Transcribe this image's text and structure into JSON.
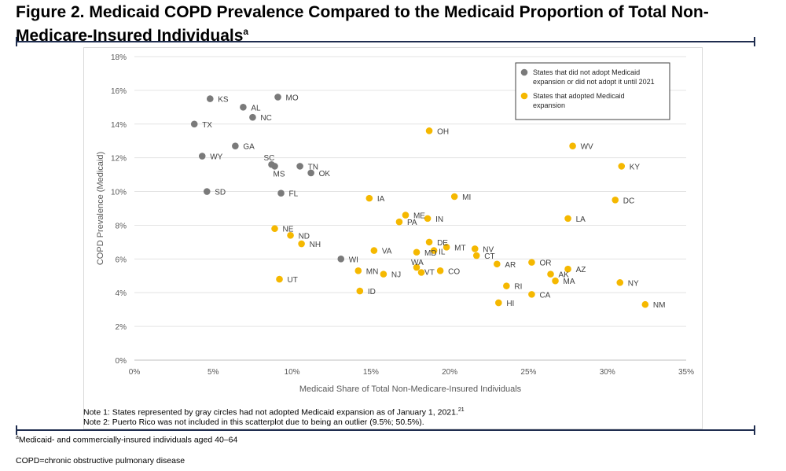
{
  "figure": {
    "title_main": "Figure 2. Medicaid COPD Prevalence Compared to the Medicaid Proportion of Total Non-Medicare-Insured Individuals",
    "title_sup": "a"
  },
  "notes": {
    "note1_text": "Note 1: States represented by gray circles had not adopted Medicaid expansion as of January 1, 2021.",
    "note1_sup": "21",
    "note2_text": "Note 2: Puerto Rico was not included in this scatterplot due to being an outlier (9.5%; 50.5%)."
  },
  "footnotes": {
    "a_sup": "a",
    "a_text": "Medicaid- and commercially-insured individuals aged 40–64",
    "abbrev": "COPD=chronic obstructive pulmonary disease"
  },
  "colors": {
    "non_expansion": "#7a7a7a",
    "expansion": "#f5b800",
    "rule": "#1f2d4f",
    "gridline": "#e3e3e3"
  },
  "chart_data": {
    "type": "scatter",
    "xlabel": "Medicaid Share of Total Non-Medicare-Insured Individuals",
    "ylabel": "COPD Prevalence (Medicaid)",
    "xlim": [
      0,
      35
    ],
    "ylim": [
      0,
      18
    ],
    "x_ticks": [
      "0%",
      "5%",
      "10%",
      "15%",
      "20%",
      "25%",
      "30%",
      "35%"
    ],
    "y_ticks": [
      "0%",
      "2%",
      "4%",
      "6%",
      "8%",
      "10%",
      "12%",
      "14%",
      "16%",
      "18%"
    ],
    "grid": "horizontal",
    "legend_position": "top-right",
    "series": [
      {
        "name": "States that did not adopt Medicaid expansion or did not adopt it until 2021",
        "points": [
          {
            "label": "KS",
            "x": 4.8,
            "y": 15.5
          },
          {
            "label": "MO",
            "x": 9.1,
            "y": 15.6
          },
          {
            "label": "AL",
            "x": 6.9,
            "y": 15.0
          },
          {
            "label": "NC",
            "x": 7.5,
            "y": 14.4
          },
          {
            "label": "TX",
            "x": 3.8,
            "y": 14.0
          },
          {
            "label": "GA",
            "x": 6.4,
            "y": 12.7
          },
          {
            "label": "WY",
            "x": 4.3,
            "y": 12.1
          },
          {
            "label": "SC",
            "x": 8.7,
            "y": 11.6
          },
          {
            "label": "MS",
            "x": 8.9,
            "y": 11.5
          },
          {
            "label": "TN",
            "x": 10.5,
            "y": 11.5
          },
          {
            "label": "OK",
            "x": 11.2,
            "y": 11.1
          },
          {
            "label": "SD",
            "x": 4.6,
            "y": 10.0
          },
          {
            "label": "FL",
            "x": 9.3,
            "y": 9.9
          },
          {
            "label": "WI",
            "x": 13.1,
            "y": 6.0
          }
        ]
      },
      {
        "name": "States that adopted Medicaid expansion",
        "points": [
          {
            "label": "OH",
            "x": 18.7,
            "y": 13.6
          },
          {
            "label": "WV",
            "x": 27.8,
            "y": 12.7
          },
          {
            "label": "KY",
            "x": 30.9,
            "y": 11.5
          },
          {
            "label": "IA",
            "x": 14.9,
            "y": 9.6
          },
          {
            "label": "MI",
            "x": 20.3,
            "y": 9.7
          },
          {
            "label": "DC",
            "x": 30.5,
            "y": 9.5
          },
          {
            "label": "ME",
            "x": 17.2,
            "y": 8.6
          },
          {
            "label": "IN",
            "x": 18.6,
            "y": 8.4
          },
          {
            "label": "PA",
            "x": 16.8,
            "y": 8.2
          },
          {
            "label": "LA",
            "x": 27.5,
            "y": 8.4
          },
          {
            "label": "NE",
            "x": 8.9,
            "y": 7.8
          },
          {
            "label": "ND",
            "x": 9.9,
            "y": 7.4
          },
          {
            "label": "NH",
            "x": 10.6,
            "y": 6.9
          },
          {
            "label": "DE",
            "x": 18.7,
            "y": 7.0
          },
          {
            "label": "MT",
            "x": 19.8,
            "y": 6.7
          },
          {
            "label": "VA",
            "x": 15.2,
            "y": 6.5
          },
          {
            "label": "IL",
            "x": 19.0,
            "y": 6.5
          },
          {
            "label": "MD",
            "x": 17.9,
            "y": 6.4
          },
          {
            "label": "NV",
            "x": 21.6,
            "y": 6.6
          },
          {
            "label": "CT",
            "x": 21.7,
            "y": 6.2
          },
          {
            "label": "AR",
            "x": 23.0,
            "y": 5.7
          },
          {
            "label": "OR",
            "x": 25.2,
            "y": 5.8
          },
          {
            "label": "AZ",
            "x": 27.5,
            "y": 5.4
          },
          {
            "label": "AK",
            "x": 26.4,
            "y": 5.1
          },
          {
            "label": "MA",
            "x": 26.7,
            "y": 4.7
          },
          {
            "label": "MN",
            "x": 14.2,
            "y": 5.3
          },
          {
            "label": "NJ",
            "x": 15.8,
            "y": 5.1
          },
          {
            "label": "WA",
            "x": 17.9,
            "y": 5.5
          },
          {
            "label": "VT",
            "x": 18.2,
            "y": 5.2
          },
          {
            "label": "CO",
            "x": 19.4,
            "y": 5.3
          },
          {
            "label": "UT",
            "x": 9.2,
            "y": 4.8
          },
          {
            "label": "ID",
            "x": 14.3,
            "y": 4.1
          },
          {
            "label": "RI",
            "x": 23.6,
            "y": 4.4
          },
          {
            "label": "CA",
            "x": 25.2,
            "y": 3.9
          },
          {
            "label": "HI",
            "x": 23.1,
            "y": 3.4
          },
          {
            "label": "NY",
            "x": 30.8,
            "y": 4.6
          },
          {
            "label": "NM",
            "x": 32.4,
            "y": 3.3
          }
        ]
      }
    ]
  }
}
